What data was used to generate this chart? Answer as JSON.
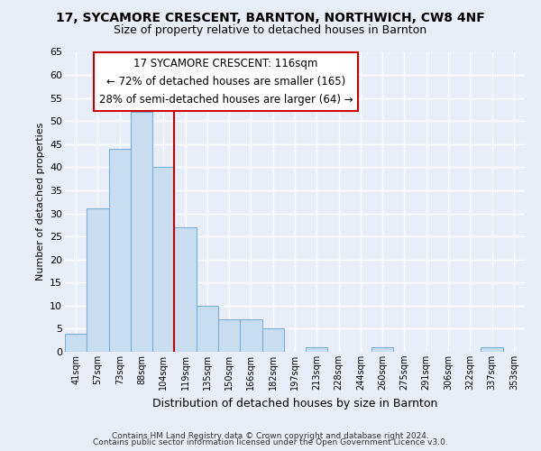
{
  "title": "17, SYCAMORE CRESCENT, BARNTON, NORTHWICH, CW8 4NF",
  "subtitle": "Size of property relative to detached houses in Barnton",
  "xlabel": "Distribution of detached houses by size in Barnton",
  "ylabel": "Number of detached properties",
  "bar_labels": [
    "41sqm",
    "57sqm",
    "73sqm",
    "88sqm",
    "104sqm",
    "119sqm",
    "135sqm",
    "150sqm",
    "166sqm",
    "182sqm",
    "197sqm",
    "213sqm",
    "228sqm",
    "244sqm",
    "260sqm",
    "275sqm",
    "291sqm",
    "306sqm",
    "322sqm",
    "337sqm",
    "353sqm"
  ],
  "bar_values": [
    4,
    31,
    44,
    52,
    40,
    27,
    10,
    7,
    7,
    5,
    0,
    1,
    0,
    0,
    1,
    0,
    0,
    0,
    0,
    1,
    0
  ],
  "bar_color": "#c8ddf0",
  "bar_edge_color": "#7bafd4",
  "vline_color": "#cc0000",
  "vline_pos": 4.5,
  "ylim": [
    0,
    65
  ],
  "yticks": [
    0,
    5,
    10,
    15,
    20,
    25,
    30,
    35,
    40,
    45,
    50,
    55,
    60,
    65
  ],
  "annotation_title": "17 SYCAMORE CRESCENT: 116sqm",
  "annotation_line1": "← 72% of detached houses are smaller (165)",
  "annotation_line2": "28% of semi-detached houses are larger (64) →",
  "annotation_box_color": "#ffffff",
  "annotation_box_edge": "#cc0000",
  "footer1": "Contains HM Land Registry data © Crown copyright and database right 2024.",
  "footer2": "Contains public sector information licensed under the Open Government Licence v3.0.",
  "bg_color": "#e8eef8",
  "plot_bg_color": "#e8eef8",
  "title_fontsize": 10,
  "subtitle_fontsize": 9,
  "grid_color": "#ffffff"
}
